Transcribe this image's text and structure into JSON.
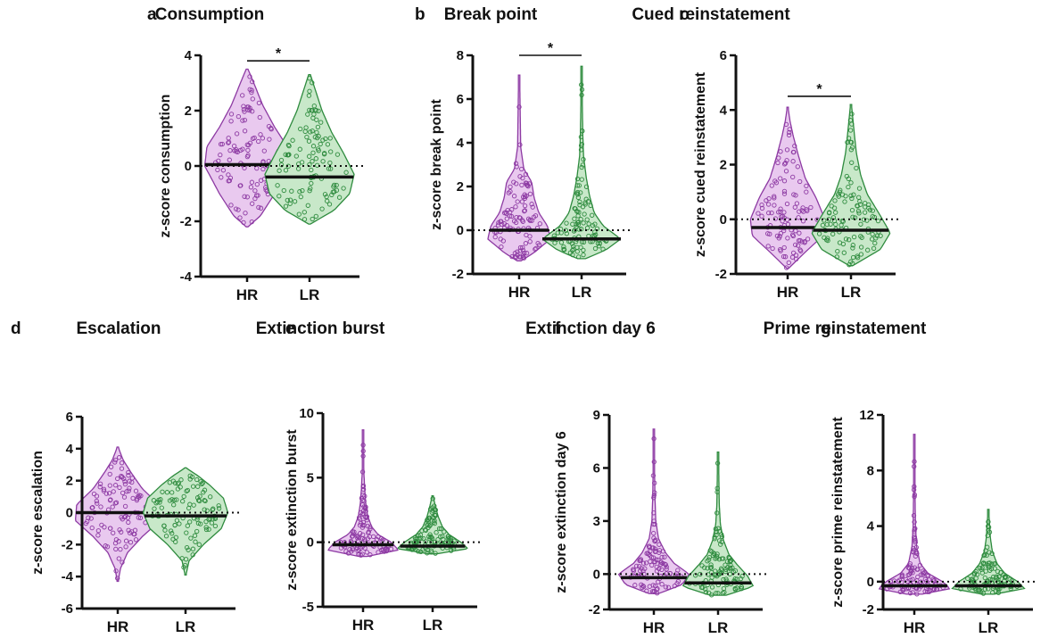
{
  "colors": {
    "hr_fill": "#e9c9ef",
    "hr_line": "#8d3aa3",
    "lr_fill": "#c8e8c9",
    "lr_line": "#2e8b3e",
    "axis": "#111111",
    "median": "#111111"
  },
  "chart_data": [
    {
      "letter": "a",
      "type": "violin",
      "title": "Consumption",
      "ylabel": "z-score consumption",
      "categories": [
        "HR",
        "LR"
      ],
      "yticks": [
        "4",
        "2",
        "0",
        "-2",
        "-4"
      ],
      "ylim": [
        -4,
        4
      ],
      "reference_line": 0,
      "significance": {
        "label": "*",
        "between": [
          "HR",
          "LR"
        ],
        "y": 3.8
      },
      "series": [
        {
          "group": "HR",
          "min": -2.2,
          "max": 3.5,
          "median": 0.05,
          "shape": [
            [
              -2.2,
              0.02
            ],
            [
              -1.8,
              0.3
            ],
            [
              -1.0,
              0.62
            ],
            [
              0.0,
              0.95
            ],
            [
              0.7,
              0.9
            ],
            [
              1.4,
              0.62
            ],
            [
              2.2,
              0.35
            ],
            [
              3.0,
              0.15
            ],
            [
              3.5,
              0.02
            ]
          ]
        },
        {
          "group": "LR",
          "min": -2.1,
          "max": 3.3,
          "median": -0.4,
          "shape": [
            [
              -2.1,
              0.02
            ],
            [
              -1.6,
              0.55
            ],
            [
              -1.0,
              0.9
            ],
            [
              -0.3,
              1.0
            ],
            [
              0.5,
              0.75
            ],
            [
              1.2,
              0.5
            ],
            [
              2.0,
              0.28
            ],
            [
              2.8,
              0.12
            ],
            [
              3.3,
              0.02
            ]
          ]
        }
      ]
    },
    {
      "letter": "b",
      "type": "violin",
      "title": "Break point",
      "ylabel": "z-score break point",
      "categories": [
        "HR",
        "LR"
      ],
      "yticks": [
        "8",
        "6",
        "4",
        "2",
        "0",
        "-2"
      ],
      "ylim": [
        -2,
        8
      ],
      "reference_line": 0,
      "significance": {
        "label": "*",
        "between": [
          "HR",
          "LR"
        ],
        "y": 8.0
      },
      "series": [
        {
          "group": "HR",
          "min": -1.4,
          "max": 7.1,
          "median": 0.0,
          "shape": [
            [
              -1.4,
              0.05
            ],
            [
              -1.0,
              0.4
            ],
            [
              -0.4,
              0.8
            ],
            [
              0.2,
              0.72
            ],
            [
              0.8,
              0.5
            ],
            [
              1.5,
              0.38
            ],
            [
              2.2,
              0.32
            ],
            [
              2.8,
              0.12
            ],
            [
              3.8,
              0.04
            ],
            [
              5.0,
              0.03
            ],
            [
              6.2,
              0.02
            ],
            [
              7.1,
              0.01
            ]
          ]
        },
        {
          "group": "LR",
          "min": -1.3,
          "max": 7.5,
          "median": -0.4,
          "shape": [
            [
              -1.3,
              0.1
            ],
            [
              -0.9,
              0.62
            ],
            [
              -0.4,
              1.0
            ],
            [
              0.2,
              0.55
            ],
            [
              0.8,
              0.32
            ],
            [
              1.6,
              0.2
            ],
            [
              2.4,
              0.12
            ],
            [
              3.4,
              0.05
            ],
            [
              4.4,
              0.03
            ],
            [
              5.6,
              0.02
            ],
            [
              7.5,
              0.01
            ]
          ]
        }
      ]
    },
    {
      "letter": "c",
      "type": "violin",
      "title": "Cued reinstatement",
      "ylabel": "z-score cued reinstatement",
      "categories": [
        "HR",
        "LR"
      ],
      "yticks": [
        "6",
        "4",
        "2",
        "0",
        "-2"
      ],
      "ylim": [
        -2,
        6
      ],
      "reference_line": 0,
      "significance": {
        "label": "*",
        "between": [
          "HR",
          "LR"
        ],
        "y": 4.5
      },
      "series": [
        {
          "group": "HR",
          "min": -1.8,
          "max": 4.1,
          "median": -0.3,
          "shape": [
            [
              -1.8,
              0.02
            ],
            [
              -1.2,
              0.45
            ],
            [
              -0.6,
              0.9
            ],
            [
              0.0,
              0.95
            ],
            [
              0.8,
              0.72
            ],
            [
              1.5,
              0.45
            ],
            [
              2.3,
              0.28
            ],
            [
              3.0,
              0.15
            ],
            [
              3.6,
              0.06
            ],
            [
              4.1,
              0.01
            ]
          ]
        },
        {
          "group": "LR",
          "min": -1.7,
          "max": 4.2,
          "median": -0.4,
          "shape": [
            [
              -1.7,
              0.04
            ],
            [
              -1.1,
              0.75
            ],
            [
              -0.5,
              1.0
            ],
            [
              0.2,
              0.72
            ],
            [
              0.9,
              0.42
            ],
            [
              1.6,
              0.25
            ],
            [
              2.4,
              0.14
            ],
            [
              3.2,
              0.08
            ],
            [
              3.8,
              0.04
            ],
            [
              4.2,
              0.01
            ]
          ]
        }
      ]
    },
    {
      "letter": "d",
      "type": "violin",
      "title": "Escalation",
      "ylabel": "z-score escalation",
      "categories": [
        "HR",
        "LR"
      ],
      "yticks": [
        "6",
        "4",
        "2",
        "0",
        "-2",
        "-4",
        "-6"
      ],
      "ylim": [
        -6,
        6
      ],
      "reference_line": 0,
      "series": [
        {
          "group": "HR",
          "min": -4.3,
          "max": 4.1,
          "median": 0.0,
          "shape": [
            [
              -4.3,
              0.01
            ],
            [
              -3.5,
              0.06
            ],
            [
              -2.5,
              0.22
            ],
            [
              -1.5,
              0.55
            ],
            [
              -0.5,
              0.95
            ],
            [
              0.5,
              0.92
            ],
            [
              1.5,
              0.55
            ],
            [
              2.5,
              0.3
            ],
            [
              3.3,
              0.12
            ],
            [
              4.1,
              0.01
            ]
          ]
        },
        {
          "group": "LR",
          "min": -3.9,
          "max": 2.8,
          "median": -0.2,
          "shape": [
            [
              -3.9,
              0.01
            ],
            [
              -3.0,
              0.08
            ],
            [
              -2.0,
              0.4
            ],
            [
              -1.0,
              0.8
            ],
            [
              0.0,
              0.95
            ],
            [
              0.9,
              0.85
            ],
            [
              1.7,
              0.55
            ],
            [
              2.3,
              0.28
            ],
            [
              2.8,
              0.01
            ]
          ]
        }
      ]
    },
    {
      "letter": "e",
      "type": "violin",
      "title": "Extinction burst",
      "ylabel": "z-score extinction burst",
      "categories": [
        "HR",
        "LR"
      ],
      "yticks": [
        "10",
        "5",
        "0",
        "-5"
      ],
      "ylim": [
        -5,
        10
      ],
      "reference_line": 0,
      "series": [
        {
          "group": "HR",
          "min": -1.1,
          "max": 8.7,
          "median": -0.2,
          "shape": [
            [
              -1.1,
              0.1
            ],
            [
              -0.6,
              0.9
            ],
            [
              0.0,
              0.72
            ],
            [
              0.6,
              0.38
            ],
            [
              1.2,
              0.22
            ],
            [
              2.0,
              0.12
            ],
            [
              3.0,
              0.07
            ],
            [
              4.2,
              0.04
            ],
            [
              5.5,
              0.02
            ],
            [
              7.0,
              0.015
            ],
            [
              8.7,
              0.005
            ]
          ]
        },
        {
          "group": "LR",
          "min": -0.9,
          "max": 3.6,
          "median": -0.3,
          "shape": [
            [
              -0.9,
              0.1
            ],
            [
              -0.5,
              0.9
            ],
            [
              0.0,
              0.72
            ],
            [
              0.6,
              0.42
            ],
            [
              1.2,
              0.25
            ],
            [
              2.0,
              0.14
            ],
            [
              2.8,
              0.07
            ],
            [
              3.6,
              0.01
            ]
          ]
        }
      ]
    },
    {
      "letter": "f",
      "type": "violin",
      "title": "Extinction day 6",
      "ylabel": "z-score extinction day 6",
      "categories": [
        "HR",
        "LR"
      ],
      "yticks": [
        "9",
        "6",
        "3",
        "0",
        "-2"
      ],
      "ylim": [
        -2,
        9
      ],
      "reference_line": 0,
      "series": [
        {
          "group": "HR",
          "min": -1.1,
          "max": 8.2,
          "median": -0.2,
          "shape": [
            [
              -1.1,
              0.12
            ],
            [
              -0.6,
              0.72
            ],
            [
              0.0,
              0.9
            ],
            [
              0.6,
              0.52
            ],
            [
              1.2,
              0.3
            ],
            [
              2.0,
              0.12
            ],
            [
              3.0,
              0.05
            ],
            [
              4.2,
              0.03
            ],
            [
              5.5,
              0.02
            ],
            [
              7.0,
              0.01
            ],
            [
              8.2,
              0.005
            ]
          ]
        },
        {
          "group": "LR",
          "min": -1.2,
          "max": 6.9,
          "median": -0.5,
          "shape": [
            [
              -1.2,
              0.2
            ],
            [
              -0.7,
              0.9
            ],
            [
              -0.1,
              0.75
            ],
            [
              0.5,
              0.5
            ],
            [
              1.1,
              0.28
            ],
            [
              1.9,
              0.14
            ],
            [
              2.8,
              0.06
            ],
            [
              4.0,
              0.03
            ],
            [
              5.5,
              0.02
            ],
            [
              6.9,
              0.005
            ]
          ]
        }
      ]
    },
    {
      "letter": "g",
      "type": "violin",
      "title": "Prime reinstatement",
      "ylabel": "z-score prime reinstatement",
      "categories": [
        "HR",
        "LR"
      ],
      "yticks": [
        "12",
        "8",
        "4",
        "0",
        "-2"
      ],
      "ylim": [
        -2,
        12
      ],
      "reference_line": 0,
      "series": [
        {
          "group": "HR",
          "min": -0.9,
          "max": 10.6,
          "median": -0.3,
          "shape": [
            [
              -0.9,
              0.2
            ],
            [
              -0.5,
              0.92
            ],
            [
              0.0,
              0.72
            ],
            [
              0.6,
              0.35
            ],
            [
              1.3,
              0.15
            ],
            [
              2.5,
              0.06
            ],
            [
              4.0,
              0.03
            ],
            [
              6.0,
              0.02
            ],
            [
              8.5,
              0.01
            ],
            [
              10.6,
              0.005
            ]
          ]
        },
        {
          "group": "LR",
          "min": -0.9,
          "max": 5.2,
          "median": -0.3,
          "shape": [
            [
              -0.9,
              0.15
            ],
            [
              -0.5,
              0.92
            ],
            [
              0.0,
              0.75
            ],
            [
              0.6,
              0.42
            ],
            [
              1.3,
              0.22
            ],
            [
              2.2,
              0.1
            ],
            [
              3.2,
              0.05
            ],
            [
              4.2,
              0.03
            ],
            [
              5.2,
              0.005
            ]
          ]
        }
      ]
    }
  ]
}
